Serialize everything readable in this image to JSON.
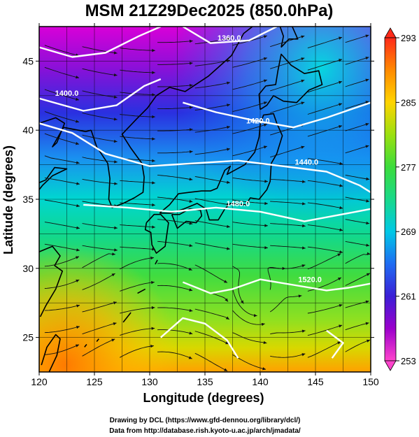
{
  "title": "MSM 21Z29Dec2025 (850.0hPa)",
  "x_axis": {
    "label": "Longitude (degrees)",
    "range": [
      120,
      150
    ],
    "ticks": [
      120,
      125,
      130,
      135,
      140,
      145,
      150
    ]
  },
  "y_axis": {
    "label": "Latitude  (degrees)",
    "range": [
      22.5,
      47.5
    ],
    "ticks": [
      25,
      30,
      35,
      40,
      45
    ]
  },
  "colorbar": {
    "min": 253,
    "max": 293,
    "tick_labels": [
      "293",
      "285",
      "277",
      "269",
      "261",
      "253"
    ],
    "tick_values": [
      293,
      285,
      277,
      269,
      261,
      253
    ]
  },
  "contours": [
    {
      "label": "1360.0",
      "lon": 137.2,
      "lat": 46.5
    },
    {
      "label": "1400.0",
      "lon": 122.5,
      "lat": 42.5
    },
    {
      "label": "1420.0",
      "lon": 139.8,
      "lat": 40.5
    },
    {
      "label": "1440.0",
      "lon": 144.2,
      "lat": 37.5
    },
    {
      "label": "1480.0",
      "lon": 138.0,
      "lat": 34.5
    },
    {
      "label": "1520.0",
      "lon": 144.5,
      "lat": 29.0
    }
  ],
  "credits": [
    "Drawing by DCL (https://www.gfd-dennou.org/library/dcl/)",
    "Data from http://database.rish.kyoto-u.ac.jp/arch/jmadata/"
  ],
  "colors": {
    "background": "#ffffff",
    "contour": "#ffffff",
    "streamline": "#111111",
    "coast": "#000000"
  }
}
